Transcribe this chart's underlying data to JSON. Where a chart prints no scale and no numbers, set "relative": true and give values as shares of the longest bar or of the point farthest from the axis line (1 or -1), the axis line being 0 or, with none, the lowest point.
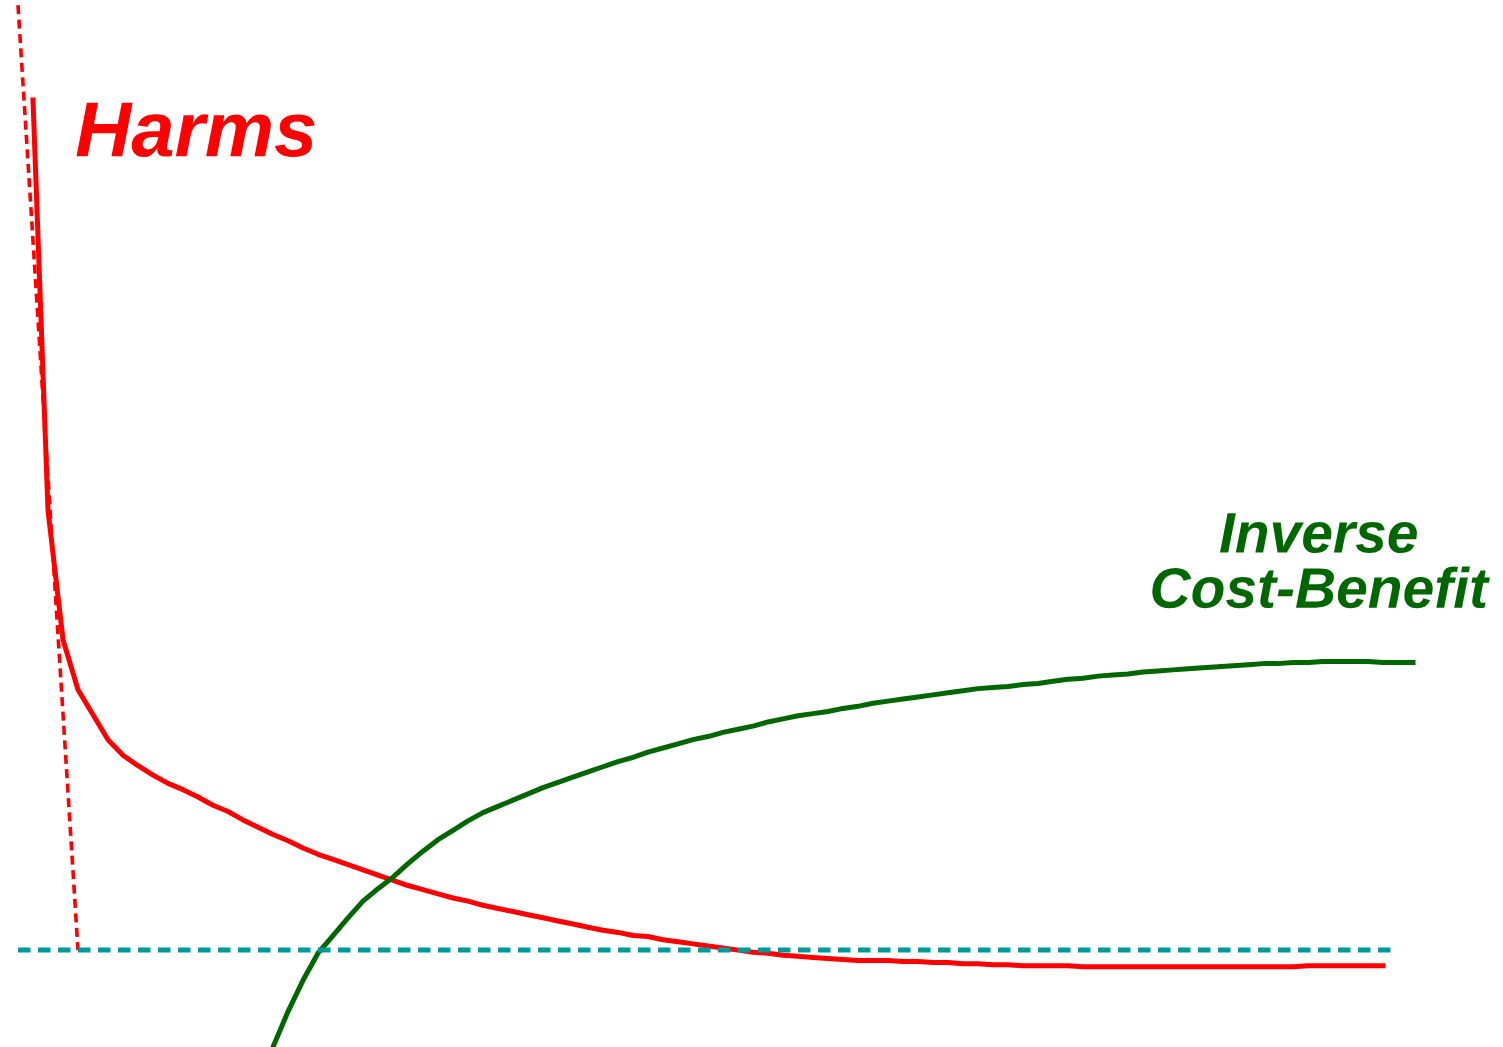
{
  "chart_data": {
    "type": "line",
    "relative": true,
    "line_style": "solid",
    "marker": "none",
    "grid": false,
    "legend": false,
    "categories": [
      null,
      null,
      null,
      null,
      null,
      null,
      null,
      null,
      null,
      null,
      null,
      null,
      null,
      null,
      null,
      null,
      null,
      null,
      null,
      null,
      null,
      null,
      null,
      null,
      null,
      null,
      null,
      null,
      null,
      null,
      null,
      null,
      null,
      null,
      null,
      null,
      null,
      null,
      null,
      null,
      null,
      null,
      null,
      null,
      null,
      null,
      null,
      null,
      null,
      null,
      null,
      null,
      null,
      null,
      null,
      null,
      null,
      null,
      null,
      null,
      null,
      null,
      null,
      null,
      null,
      null,
      null,
      null,
      null,
      null,
      null,
      null,
      null,
      null,
      null,
      null,
      null,
      null,
      null,
      null,
      null,
      null,
      null,
      null,
      null,
      null,
      null,
      null,
      null,
      null,
      null,
      null,
      null,
      null
    ],
    "series": [
      {
        "name": "Harms",
        "color": "#ff0000",
        "values": [
          null,
          0.909,
          0.515,
          0.391,
          0.343,
          0.319,
          0.295,
          0.28,
          0.27,
          0.261,
          0.253,
          0.247,
          0.24,
          0.232,
          0.226,
          0.218,
          0.211,
          0.204,
          0.198,
          0.191,
          0.185,
          0.18,
          0.175,
          0.17,
          0.165,
          0.16,
          0.155,
          0.151,
          0.147,
          0.143,
          0.14,
          0.136,
          0.133,
          0.13,
          0.127,
          0.124,
          0.121,
          0.118,
          0.115,
          0.112,
          0.11,
          0.107,
          0.106,
          0.103,
          0.101,
          0.099,
          0.097,
          0.095,
          0.093,
          0.091,
          0.09,
          0.088,
          0.087,
          0.086,
          0.085,
          0.084,
          0.083,
          0.083,
          0.083,
          0.082,
          0.082,
          0.081,
          0.081,
          0.08,
          0.08,
          0.079,
          0.079,
          0.078,
          0.078,
          0.078,
          0.078,
          0.077,
          0.077,
          0.077,
          0.077,
          0.077,
          0.077,
          0.077,
          0.077,
          0.077,
          0.077,
          0.077,
          0.077,
          0.077,
          0.077,
          0.077,
          0.078,
          0.078,
          0.078,
          0.078,
          0.078,
          0.078,
          null,
          null
        ]
      },
      {
        "color": "#ff0000",
        "line_style": "dashed",
        "values": [
          1.0,
          0.774,
          0.547,
          0.32,
          0.093,
          null,
          null,
          null,
          null,
          null,
          null,
          null,
          null,
          null,
          null,
          null,
          null,
          null,
          null,
          null,
          null,
          null,
          null,
          null,
          null,
          null,
          null,
          null,
          null,
          null,
          null,
          null,
          null,
          null,
          null,
          null,
          null,
          null,
          null,
          null,
          null,
          null,
          null,
          null,
          null,
          null,
          null,
          null,
          null,
          null,
          null,
          null,
          null,
          null,
          null,
          null,
          null,
          null,
          null,
          null,
          null,
          null,
          null,
          null,
          null,
          null,
          null,
          null,
          null,
          null,
          null,
          null,
          null,
          null,
          null,
          null,
          null,
          null,
          null,
          null,
          null,
          null,
          null,
          null,
          null,
          null,
          null,
          null,
          null,
          null,
          null,
          null,
          null,
          null
        ]
      },
      {
        "name": "Inverse\nCost-Benefit",
        "color": "#006600",
        "values": [
          null,
          null,
          null,
          null,
          null,
          null,
          null,
          null,
          null,
          null,
          null,
          null,
          null,
          null,
          null,
          null,
          null,
          0.0,
          0.034,
          0.064,
          0.09,
          0.107,
          0.124,
          0.14,
          0.152,
          0.163,
          0.176,
          0.188,
          0.199,
          0.208,
          0.217,
          0.225,
          0.231,
          0.237,
          0.243,
          0.249,
          0.254,
          0.259,
          0.264,
          0.269,
          0.274,
          0.278,
          0.283,
          0.287,
          0.291,
          0.295,
          0.298,
          0.302,
          0.305,
          0.308,
          0.312,
          0.315,
          0.318,
          0.32,
          0.322,
          0.325,
          0.327,
          0.33,
          0.332,
          0.334,
          0.336,
          0.338,
          0.34,
          0.342,
          0.344,
          0.345,
          0.346,
          0.348,
          0.349,
          0.351,
          0.353,
          0.354,
          0.356,
          0.357,
          0.358,
          0.36,
          0.361,
          0.362,
          0.363,
          0.364,
          0.365,
          0.366,
          0.367,
          0.368,
          0.368,
          0.369,
          0.369,
          0.37,
          0.37,
          0.37,
          0.37,
          0.369,
          0.369,
          0.369
        ]
      }
    ],
    "ref_lines": [
      {
        "axis": "y",
        "value": 0.093,
        "color": "#009999",
        "line_style": "dashed"
      }
    ]
  }
}
